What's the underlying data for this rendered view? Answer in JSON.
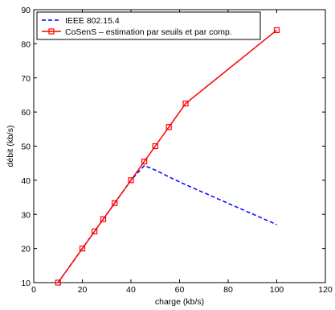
{
  "chart_data": {
    "type": "line",
    "title": "",
    "xlabel": "charge (kb/s)",
    "ylabel": "débit (kb/s)",
    "xlim": [
      0,
      120
    ],
    "ylim": [
      10,
      90
    ],
    "xticks": [
      0,
      20,
      40,
      60,
      80,
      100,
      120
    ],
    "yticks": [
      10,
      20,
      30,
      40,
      50,
      60,
      70,
      80,
      90
    ],
    "grid": false,
    "legend_position": "top-left",
    "series": [
      {
        "name": "IEEE 802.15.4",
        "color": "#0000ff",
        "line_style": "dashed",
        "marker": "none",
        "x": [
          10,
          20,
          25,
          28.6,
          33.3,
          40,
          45.5,
          50,
          55.6,
          62.5,
          100
        ],
        "y": [
          10,
          20,
          25,
          28.6,
          33.3,
          40,
          44.3,
          43,
          41,
          38.7,
          27
        ]
      },
      {
        "name": "CoSenS – estimation par seuils et par comp.",
        "color": "#ff0000",
        "line_style": "solid",
        "marker": "square",
        "x": [
          10,
          20,
          25,
          28.6,
          33.3,
          40,
          45.5,
          50,
          55.6,
          62.5,
          100
        ],
        "y": [
          10,
          20,
          25,
          28.6,
          33.3,
          40,
          45.5,
          50,
          55.6,
          62.5,
          84
        ]
      }
    ]
  }
}
